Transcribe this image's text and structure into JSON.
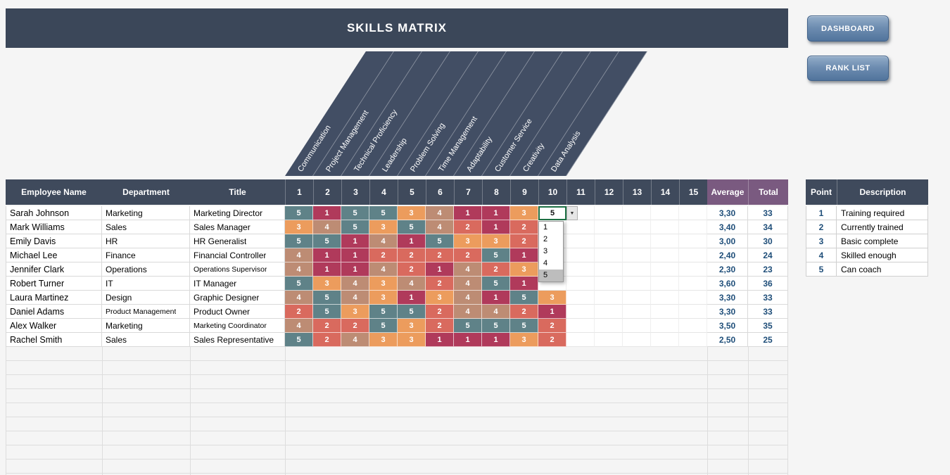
{
  "app": {
    "title": "SKILLS MATRIX"
  },
  "nav": {
    "dashboard": "DASHBOARD",
    "rank_list": "RANK LIST"
  },
  "skills": [
    "Communication",
    "Project Management",
    "Technical Proficiency",
    "Leadership",
    "Problem Solving",
    "Time Management",
    "Adaptability",
    "Customer Service",
    "Creativity",
    "Data Analysis"
  ],
  "matrix": {
    "headers": {
      "employee": "Employee Name",
      "department": "Department",
      "title": "Title",
      "average": "Average",
      "total": "Total"
    },
    "skill_numbers": [
      "1",
      "2",
      "3",
      "4",
      "5",
      "6",
      "7",
      "8",
      "9",
      "10",
      "11",
      "12",
      "13",
      "14",
      "15"
    ],
    "rows": [
      {
        "name": "Sarah Johnson",
        "department": "Marketing",
        "title": "Marketing Director",
        "scores": [
          5,
          1,
          5,
          5,
          3,
          4,
          1,
          1,
          3,
          null,
          null,
          null,
          null,
          null,
          null
        ],
        "average": "3,30",
        "total": "33"
      },
      {
        "name": "Mark Williams",
        "department": "Sales",
        "title": "Sales Manager",
        "scores": [
          3,
          4,
          5,
          3,
          5,
          4,
          2,
          1,
          2,
          null,
          null,
          null,
          null,
          null,
          null
        ],
        "average": "3,40",
        "total": "34"
      },
      {
        "name": "Emily Davis",
        "department": "HR",
        "title": "HR Generalist",
        "scores": [
          5,
          5,
          1,
          4,
          1,
          5,
          3,
          3,
          2,
          null,
          null,
          null,
          null,
          null,
          null
        ],
        "average": "3,00",
        "total": "30"
      },
      {
        "name": "Michael Lee",
        "department": "Finance",
        "title": "Financial Controller",
        "scores": [
          4,
          1,
          1,
          2,
          2,
          2,
          2,
          5,
          1,
          null,
          null,
          null,
          null,
          null,
          null
        ],
        "average": "2,40",
        "total": "24"
      },
      {
        "name": "Jennifer Clark",
        "department": "Operations",
        "title": "Operations Supervisor",
        "scores": [
          4,
          1,
          1,
          4,
          2,
          1,
          4,
          2,
          3,
          null,
          null,
          null,
          null,
          null,
          null
        ],
        "average": "2,30",
        "total": "23"
      },
      {
        "name": "Robert Turner",
        "department": "IT",
        "title": "IT Manager",
        "scores": [
          5,
          3,
          4,
          3,
          4,
          2,
          4,
          5,
          1,
          null,
          null,
          null,
          null,
          null,
          null
        ],
        "average": "3,60",
        "total": "36"
      },
      {
        "name": "Laura Martinez",
        "department": "Design",
        "title": "Graphic Designer",
        "scores": [
          4,
          5,
          4,
          3,
          1,
          3,
          4,
          1,
          5,
          3,
          null,
          null,
          null,
          null,
          null
        ],
        "average": "3,30",
        "total": "33"
      },
      {
        "name": "Daniel Adams",
        "department": "Product Management",
        "title": "Product Owner",
        "scores": [
          2,
          5,
          3,
          5,
          5,
          2,
          4,
          4,
          2,
          1,
          null,
          null,
          null,
          null,
          null
        ],
        "average": "3,30",
        "total": "33"
      },
      {
        "name": "Alex Walker",
        "department": "Marketing",
        "title": "Marketing Coordinator",
        "scores": [
          4,
          2,
          2,
          5,
          3,
          2,
          5,
          5,
          5,
          2,
          null,
          null,
          null,
          null,
          null
        ],
        "average": "3,50",
        "total": "35"
      },
      {
        "name": "Rachel Smith",
        "department": "Sales",
        "title": "Sales Representative",
        "scores": [
          5,
          2,
          4,
          3,
          3,
          1,
          1,
          1,
          3,
          2,
          null,
          null,
          null,
          null,
          null
        ],
        "average": "2,50",
        "total": "25"
      }
    ]
  },
  "active_cell": {
    "row": 0,
    "col": 9,
    "value": "5"
  },
  "dropdown": {
    "arrow": "▼",
    "options": [
      "1",
      "2",
      "3",
      "4",
      "5"
    ],
    "highlighted": "5"
  },
  "legend": {
    "point_header": "Point",
    "description_header": "Description",
    "rows": [
      {
        "point": "1",
        "description": "Training required"
      },
      {
        "point": "2",
        "description": "Currently trained"
      },
      {
        "point": "3",
        "description": "Basic complete"
      },
      {
        "point": "4",
        "description": "Skilled enough"
      },
      {
        "point": "5",
        "description": "Can coach"
      }
    ]
  },
  "colors": {
    "score_1": "#b03a5b",
    "score_2": "#d96a5e",
    "score_3": "#ec9c5d",
    "score_4": "#bd8c74",
    "score_5": "#5f8288",
    "header_slate": "#3f4a5c",
    "header_purple": "#7a5a80",
    "active_cell_border": "#1e7145",
    "value_text_blue": "#1f4e79"
  }
}
